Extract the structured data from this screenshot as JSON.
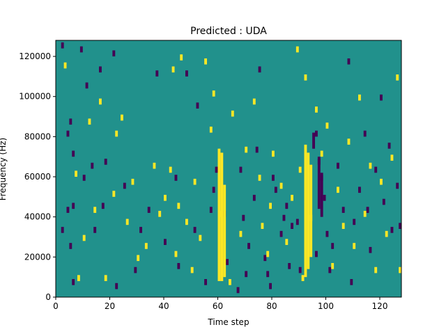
{
  "chart_data": {
    "type": "heatmap",
    "title": "Predicted : UDA",
    "xlabel": "Time step",
    "ylabel": "Frequency (Hz)",
    "xlim": [
      0,
      128
    ],
    "ylim": [
      0,
      128000
    ],
    "x_ticks": [
      0,
      20,
      40,
      60,
      80,
      100,
      120
    ],
    "y_ticks": [
      0,
      20000,
      40000,
      60000,
      80000,
      100000,
      120000
    ],
    "n_time_steps": 128,
    "n_freq_bins": 128,
    "colormap": [
      "#440154",
      "#21918c",
      "#fde725"
    ],
    "background_class": 1,
    "cells": {
      "class_0": [
        [
          2,
          124000
        ],
        [
          2,
          32000
        ],
        [
          4,
          80000
        ],
        [
          4,
          42000
        ],
        [
          5,
          86000
        ],
        [
          5,
          24000
        ],
        [
          6,
          70000
        ],
        [
          6,
          44000
        ],
        [
          6,
          6000
        ],
        [
          9,
          122000
        ],
        [
          10,
          58000
        ],
        [
          11,
          104000
        ],
        [
          13,
          64000
        ],
        [
          14,
          32000
        ],
        [
          16,
          112000
        ],
        [
          17,
          44000
        ],
        [
          18,
          66000
        ],
        [
          21,
          120000
        ],
        [
          22,
          4000
        ],
        [
          25,
          54000
        ],
        [
          29,
          12000
        ],
        [
          31,
          32000
        ],
        [
          34,
          42000
        ],
        [
          37,
          110000
        ],
        [
          40,
          26000
        ],
        [
          44,
          58000
        ],
        [
          45,
          14000
        ],
        [
          48,
          110000
        ],
        [
          51,
          32000
        ],
        [
          52,
          94000
        ],
        [
          55,
          6000
        ],
        [
          57,
          42000
        ],
        [
          59,
          62000
        ],
        [
          62,
          40000
        ],
        [
          63,
          16000
        ],
        [
          67,
          2000
        ],
        [
          68,
          62000
        ],
        [
          69,
          38000
        ],
        [
          70,
          10000
        ],
        [
          71,
          24000
        ],
        [
          73,
          48000
        ],
        [
          74,
          72000
        ],
        [
          75,
          112000
        ],
        [
          77,
          18000
        ],
        [
          78,
          10000
        ],
        [
          79,
          4000
        ],
        [
          80,
          58000
        ],
        [
          81,
          52000
        ],
        [
          83,
          30000
        ],
        [
          84,
          38000
        ],
        [
          85,
          44000
        ],
        [
          86,
          14000
        ],
        [
          87,
          34000
        ],
        [
          89,
          36000
        ],
        [
          90,
          12000
        ],
        [
          96,
          80000
        ],
        [
          96,
          20000
        ],
        [
          97,
          66000
        ],
        [
          98,
          58000
        ],
        [
          99,
          48000
        ],
        [
          100,
          30000
        ],
        [
          101,
          12000
        ],
        [
          102,
          24000
        ],
        [
          104,
          64000
        ],
        [
          106,
          42000
        ],
        [
          108,
          116000
        ],
        [
          109,
          6000
        ],
        [
          110,
          36000
        ],
        [
          112,
          52000
        ],
        [
          114,
          80000
        ],
        [
          115,
          42000
        ],
        [
          116,
          22000
        ],
        [
          118,
          62000
        ],
        [
          120,
          98000
        ],
        [
          121,
          46000
        ],
        [
          123,
          74000
        ],
        [
          124,
          32000
        ],
        [
          126,
          54000
        ],
        [
          127,
          34000
        ],
        [
          58,
          52000
        ]
      ],
      "class_2": [
        [
          3,
          114000
        ],
        [
          7,
          60000
        ],
        [
          8,
          8000
        ],
        [
          10,
          28000
        ],
        [
          12,
          86000
        ],
        [
          14,
          42000
        ],
        [
          16,
          96000
        ],
        [
          18,
          8000
        ],
        [
          21,
          50000
        ],
        [
          22,
          80000
        ],
        [
          24,
          88000
        ],
        [
          26,
          36000
        ],
        [
          28,
          56000
        ],
        [
          30,
          18000
        ],
        [
          33,
          24000
        ],
        [
          36,
          64000
        ],
        [
          38,
          40000
        ],
        [
          40,
          48000
        ],
        [
          42,
          62000
        ],
        [
          43,
          112000
        ],
        [
          44,
          20000
        ],
        [
          45,
          44000
        ],
        [
          46,
          118000
        ],
        [
          48,
          36000
        ],
        [
          50,
          12000
        ],
        [
          51,
          56000
        ],
        [
          53,
          28000
        ],
        [
          55,
          116000
        ],
        [
          57,
          82000
        ],
        [
          58,
          100000
        ],
        [
          60,
          40000
        ],
        [
          64,
          6000
        ],
        [
          65,
          90000
        ],
        [
          68,
          30000
        ],
        [
          70,
          72000
        ],
        [
          73,
          96000
        ],
        [
          75,
          58000
        ],
        [
          76,
          34000
        ],
        [
          78,
          20000
        ],
        [
          79,
          44000
        ],
        [
          80,
          70000
        ],
        [
          83,
          54000
        ],
        [
          85,
          26000
        ],
        [
          87,
          48000
        ],
        [
          89,
          122000
        ],
        [
          90,
          62000
        ],
        [
          91,
          8000
        ],
        [
          92,
          108000
        ],
        [
          94,
          38000
        ],
        [
          96,
          92000
        ],
        [
          98,
          70000
        ],
        [
          100,
          84000
        ],
        [
          102,
          14000
        ],
        [
          104,
          52000
        ],
        [
          106,
          34000
        ],
        [
          108,
          76000
        ],
        [
          110,
          24000
        ],
        [
          112,
          98000
        ],
        [
          114,
          40000
        ],
        [
          116,
          64000
        ],
        [
          118,
          12000
        ],
        [
          120,
          56000
        ],
        [
          122,
          30000
        ],
        [
          124,
          68000
        ],
        [
          126,
          108000
        ],
        [
          127,
          12000
        ]
      ],
      "bands_class_2": [
        [
          60,
          61,
          8000,
          74000
        ],
        [
          61,
          62,
          8000,
          72000
        ],
        [
          62,
          63,
          10000,
          56000
        ],
        [
          92,
          93,
          10000,
          76000
        ],
        [
          93,
          94,
          14000,
          72000
        ],
        [
          94,
          95,
          20000,
          66000
        ]
      ],
      "bands_class_0": [
        [
          97,
          98,
          44000,
          70000
        ],
        [
          98,
          99,
          40000,
          62000
        ],
        [
          95,
          96,
          74000,
          82000
        ]
      ]
    }
  }
}
